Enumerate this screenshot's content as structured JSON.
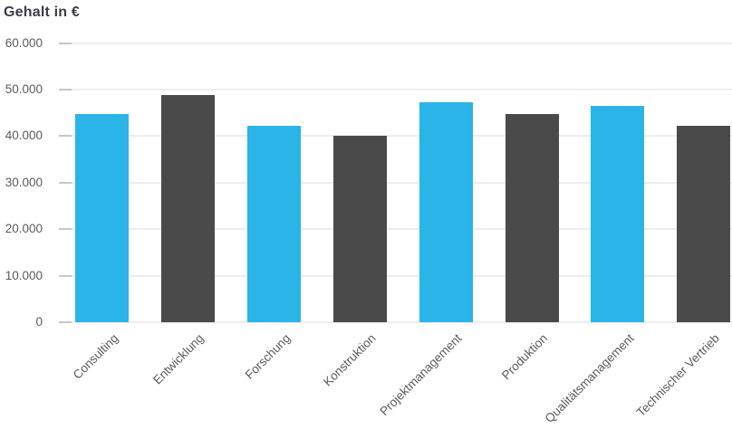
{
  "chart_data": {
    "type": "bar",
    "title": "Gehalt in €",
    "categories": [
      "Consulting",
      "Entwicklung",
      "Forschung",
      "Konstruktion",
      "Projektmanagement",
      "Produktion",
      "Qualitätsmanagement",
      "Technischer Vertrieb"
    ],
    "values": [
      44700,
      48800,
      42200,
      40000,
      47300,
      44800,
      46500,
      42200
    ],
    "bar_colors": [
      "#2AB4E8",
      "#4A4A4A",
      "#2AB4E8",
      "#4A4A4A",
      "#2AB4E8",
      "#4A4A4A",
      "#2AB4E8",
      "#4A4A4A"
    ],
    "xlabel": "",
    "ylabel": "Gehalt in €",
    "ylim": [
      0,
      60000
    ],
    "y_ticks": [
      {
        "value": 0,
        "label": "0"
      },
      {
        "value": 10000,
        "label": "10.000"
      },
      {
        "value": 20000,
        "label": "20.000"
      },
      {
        "value": 30000,
        "label": "30.000"
      },
      {
        "value": 40000,
        "label": "40.000"
      },
      {
        "value": 50000,
        "label": "50.000"
      },
      {
        "value": 60000,
        "label": "60.000"
      }
    ],
    "grid": true,
    "legend_position": "none",
    "x_tick_rotation": -45
  },
  "colors": {
    "bar_blue": "#2AB4E8",
    "bar_dark": "#4A4A4A",
    "gridline": "#EDEDED",
    "tick": "#C5C5C5",
    "axis_text": "#5A5A5A",
    "title_text": "#3B3B44"
  }
}
